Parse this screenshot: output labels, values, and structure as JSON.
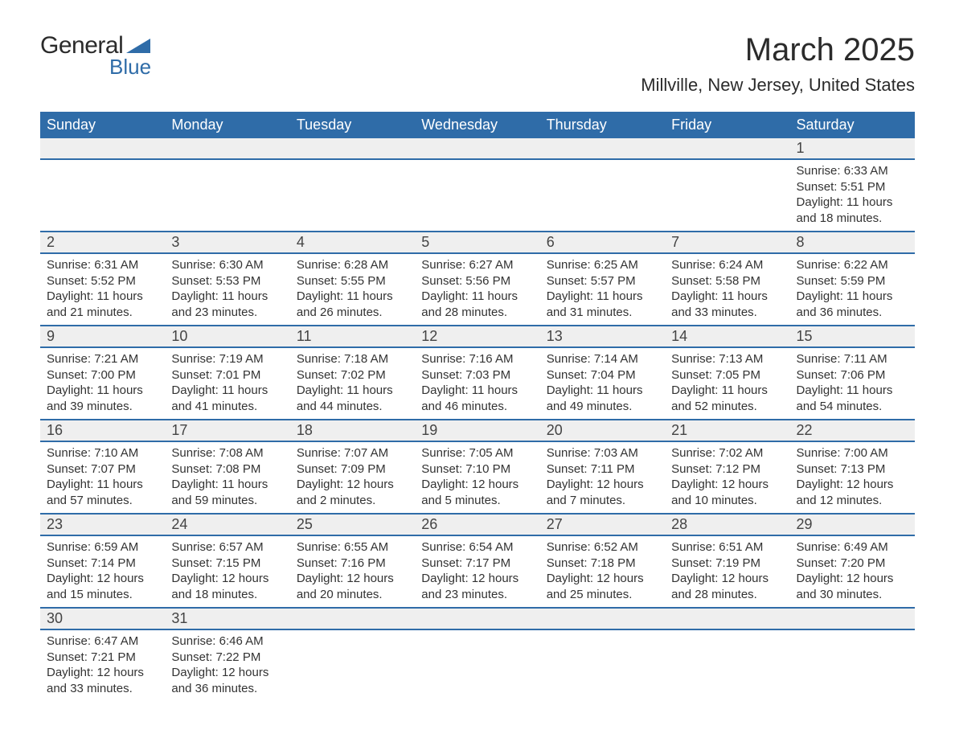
{
  "logo": {
    "text_general": "General",
    "text_blue": "Blue",
    "triangle_color": "#2f6ca8"
  },
  "title": "March 2025",
  "location": "Millville, New Jersey, United States",
  "header_bg": "#2f6ca8",
  "header_fg": "#ffffff",
  "daynum_bg": "#efefef",
  "row_border": "#2f6ca8",
  "day_headers": [
    "Sunday",
    "Monday",
    "Tuesday",
    "Wednesday",
    "Thursday",
    "Friday",
    "Saturday"
  ],
  "weeks": [
    [
      null,
      null,
      null,
      null,
      null,
      null,
      {
        "n": "1",
        "sunrise": "Sunrise: 6:33 AM",
        "sunset": "Sunset: 5:51 PM",
        "daylight": "Daylight: 11 hours and 18 minutes."
      }
    ],
    [
      {
        "n": "2",
        "sunrise": "Sunrise: 6:31 AM",
        "sunset": "Sunset: 5:52 PM",
        "daylight": "Daylight: 11 hours and 21 minutes."
      },
      {
        "n": "3",
        "sunrise": "Sunrise: 6:30 AM",
        "sunset": "Sunset: 5:53 PM",
        "daylight": "Daylight: 11 hours and 23 minutes."
      },
      {
        "n": "4",
        "sunrise": "Sunrise: 6:28 AM",
        "sunset": "Sunset: 5:55 PM",
        "daylight": "Daylight: 11 hours and 26 minutes."
      },
      {
        "n": "5",
        "sunrise": "Sunrise: 6:27 AM",
        "sunset": "Sunset: 5:56 PM",
        "daylight": "Daylight: 11 hours and 28 minutes."
      },
      {
        "n": "6",
        "sunrise": "Sunrise: 6:25 AM",
        "sunset": "Sunset: 5:57 PM",
        "daylight": "Daylight: 11 hours and 31 minutes."
      },
      {
        "n": "7",
        "sunrise": "Sunrise: 6:24 AM",
        "sunset": "Sunset: 5:58 PM",
        "daylight": "Daylight: 11 hours and 33 minutes."
      },
      {
        "n": "8",
        "sunrise": "Sunrise: 6:22 AM",
        "sunset": "Sunset: 5:59 PM",
        "daylight": "Daylight: 11 hours and 36 minutes."
      }
    ],
    [
      {
        "n": "9",
        "sunrise": "Sunrise: 7:21 AM",
        "sunset": "Sunset: 7:00 PM",
        "daylight": "Daylight: 11 hours and 39 minutes."
      },
      {
        "n": "10",
        "sunrise": "Sunrise: 7:19 AM",
        "sunset": "Sunset: 7:01 PM",
        "daylight": "Daylight: 11 hours and 41 minutes."
      },
      {
        "n": "11",
        "sunrise": "Sunrise: 7:18 AM",
        "sunset": "Sunset: 7:02 PM",
        "daylight": "Daylight: 11 hours and 44 minutes."
      },
      {
        "n": "12",
        "sunrise": "Sunrise: 7:16 AM",
        "sunset": "Sunset: 7:03 PM",
        "daylight": "Daylight: 11 hours and 46 minutes."
      },
      {
        "n": "13",
        "sunrise": "Sunrise: 7:14 AM",
        "sunset": "Sunset: 7:04 PM",
        "daylight": "Daylight: 11 hours and 49 minutes."
      },
      {
        "n": "14",
        "sunrise": "Sunrise: 7:13 AM",
        "sunset": "Sunset: 7:05 PM",
        "daylight": "Daylight: 11 hours and 52 minutes."
      },
      {
        "n": "15",
        "sunrise": "Sunrise: 7:11 AM",
        "sunset": "Sunset: 7:06 PM",
        "daylight": "Daylight: 11 hours and 54 minutes."
      }
    ],
    [
      {
        "n": "16",
        "sunrise": "Sunrise: 7:10 AM",
        "sunset": "Sunset: 7:07 PM",
        "daylight": "Daylight: 11 hours and 57 minutes."
      },
      {
        "n": "17",
        "sunrise": "Sunrise: 7:08 AM",
        "sunset": "Sunset: 7:08 PM",
        "daylight": "Daylight: 11 hours and 59 minutes."
      },
      {
        "n": "18",
        "sunrise": "Sunrise: 7:07 AM",
        "sunset": "Sunset: 7:09 PM",
        "daylight": "Daylight: 12 hours and 2 minutes."
      },
      {
        "n": "19",
        "sunrise": "Sunrise: 7:05 AM",
        "sunset": "Sunset: 7:10 PM",
        "daylight": "Daylight: 12 hours and 5 minutes."
      },
      {
        "n": "20",
        "sunrise": "Sunrise: 7:03 AM",
        "sunset": "Sunset: 7:11 PM",
        "daylight": "Daylight: 12 hours and 7 minutes."
      },
      {
        "n": "21",
        "sunrise": "Sunrise: 7:02 AM",
        "sunset": "Sunset: 7:12 PM",
        "daylight": "Daylight: 12 hours and 10 minutes."
      },
      {
        "n": "22",
        "sunrise": "Sunrise: 7:00 AM",
        "sunset": "Sunset: 7:13 PM",
        "daylight": "Daylight: 12 hours and 12 minutes."
      }
    ],
    [
      {
        "n": "23",
        "sunrise": "Sunrise: 6:59 AM",
        "sunset": "Sunset: 7:14 PM",
        "daylight": "Daylight: 12 hours and 15 minutes."
      },
      {
        "n": "24",
        "sunrise": "Sunrise: 6:57 AM",
        "sunset": "Sunset: 7:15 PM",
        "daylight": "Daylight: 12 hours and 18 minutes."
      },
      {
        "n": "25",
        "sunrise": "Sunrise: 6:55 AM",
        "sunset": "Sunset: 7:16 PM",
        "daylight": "Daylight: 12 hours and 20 minutes."
      },
      {
        "n": "26",
        "sunrise": "Sunrise: 6:54 AM",
        "sunset": "Sunset: 7:17 PM",
        "daylight": "Daylight: 12 hours and 23 minutes."
      },
      {
        "n": "27",
        "sunrise": "Sunrise: 6:52 AM",
        "sunset": "Sunset: 7:18 PM",
        "daylight": "Daylight: 12 hours and 25 minutes."
      },
      {
        "n": "28",
        "sunrise": "Sunrise: 6:51 AM",
        "sunset": "Sunset: 7:19 PM",
        "daylight": "Daylight: 12 hours and 28 minutes."
      },
      {
        "n": "29",
        "sunrise": "Sunrise: 6:49 AM",
        "sunset": "Sunset: 7:20 PM",
        "daylight": "Daylight: 12 hours and 30 minutes."
      }
    ],
    [
      {
        "n": "30",
        "sunrise": "Sunrise: 6:47 AM",
        "sunset": "Sunset: 7:21 PM",
        "daylight": "Daylight: 12 hours and 33 minutes."
      },
      {
        "n": "31",
        "sunrise": "Sunrise: 6:46 AM",
        "sunset": "Sunset: 7:22 PM",
        "daylight": "Daylight: 12 hours and 36 minutes."
      },
      null,
      null,
      null,
      null,
      null
    ]
  ]
}
